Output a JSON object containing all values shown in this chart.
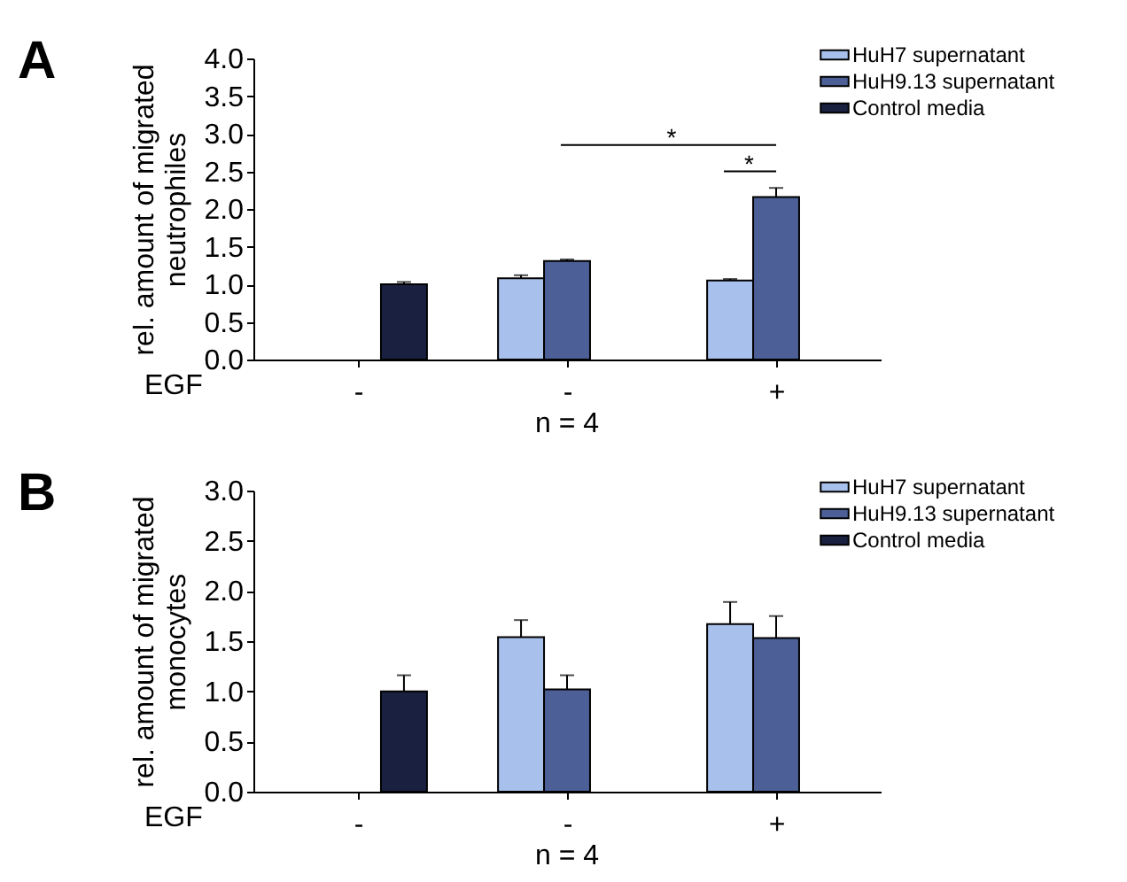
{
  "chart_data": [
    {
      "type": "bar",
      "title": "A",
      "categories": [
        "-",
        "-",
        "+"
      ],
      "xlabel": "EGF",
      "ylabel": "rel. amount of  migrated\nneutrophiles",
      "ylim": [
        0,
        4
      ],
      "yticks": [
        {
          "value": 0,
          "label": "0.0"
        },
        {
          "value": 0.5,
          "label": "0.5"
        },
        {
          "value": 1,
          "label": "1.0"
        },
        {
          "value": 1.5,
          "label": "1.5"
        },
        {
          "value": 2,
          "label": "2.0"
        },
        {
          "value": 2.5,
          "label": "2.5"
        },
        {
          "value": 3,
          "label": "3.0"
        },
        {
          "value": 3.5,
          "label": "3.5"
        },
        {
          "value": 4,
          "label": "4.0"
        }
      ],
      "legend": "top right",
      "annotations": [
        "*",
        "*",
        "n = 4"
      ],
      "series": [
        {
          "name": "HuH7 supernatant",
          "color": "#a8c0ec",
          "values": [
            null,
            1.08,
            1.05
          ],
          "errors": [
            null,
            [
              1.08,
              1.12
            ],
            [
              1.05,
              1.07
            ]
          ]
        },
        {
          "name": "HuH9.13 supernatant",
          "color": "#4c5f96",
          "values": [
            null,
            1.31,
            2.16
          ],
          "errors": [
            null,
            [
              1.31,
              1.33
            ],
            [
              2.16,
              2.28
            ]
          ]
        },
        {
          "name": "Control media",
          "color": "#1a2040",
          "values": [
            1.0,
            null,
            null
          ],
          "errors": [
            [
              1.0,
              1.03
            ],
            null,
            null
          ]
        }
      ]
    },
    {
      "type": "bar",
      "title": "B",
      "categories": [
        "-",
        "-",
        "+"
      ],
      "xlabel": "EGF",
      "ylabel": "rel. amount of migrated\nmonocytes",
      "ylim": [
        0,
        3
      ],
      "yticks": [
        {
          "value": 0,
          "label": "0.0"
        },
        {
          "value": 0.5,
          "label": "0.5"
        },
        {
          "value": 1,
          "label": "1.0"
        },
        {
          "value": 1.5,
          "label": "1.5"
        },
        {
          "value": 2,
          "label": "2.0"
        },
        {
          "value": 2.5,
          "label": "2.5"
        },
        {
          "value": 3,
          "label": "3.0"
        }
      ],
      "legend": "top right",
      "annotations": [
        "n = 4"
      ],
      "series": [
        {
          "name": "HuH7 supernatant",
          "color": "#a8c0ec",
          "values": [
            null,
            1.54,
            1.67
          ],
          "errors": [
            null,
            [
              1.54,
              1.71
            ],
            [
              1.67,
              1.89
            ]
          ]
        },
        {
          "name": "HuH9.13 supernatant",
          "color": "#4c5f96",
          "values": [
            null,
            1.02,
            1.53
          ],
          "errors": [
            null,
            [
              1.02,
              1.16
            ],
            [
              1.53,
              1.75
            ]
          ]
        },
        {
          "name": "Control media",
          "color": "#1a2040",
          "values": [
            1.0,
            null,
            null
          ],
          "errors": [
            [
              1.0,
              1.16
            ],
            null,
            null
          ]
        }
      ]
    }
  ]
}
